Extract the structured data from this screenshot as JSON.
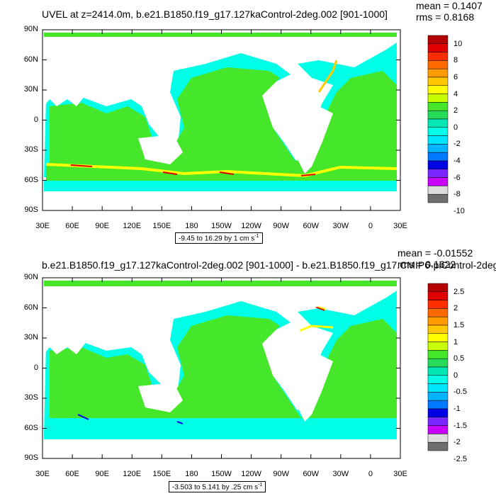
{
  "panel1": {
    "title": "UVEL at z=2414.0m, b.e21.B1850.f19_g17.127kaControl-2deg.002 [901-1000]",
    "mean_text": "mean = 0.1407",
    "rms_text": "rms = 0.8168",
    "range_text": "-9.45 to 16.29 by 1 cm s",
    "range_exp": "-1",
    "colorbar_labels": [
      "10",
      "8",
      "6",
      "4",
      "2",
      "0",
      "-2",
      "-4",
      "-6",
      "-8",
      "-10"
    ],
    "colorbar_colors": [
      "#b40000",
      "#e00000",
      "#ff2e00",
      "#ff6a00",
      "#ff9a00",
      "#ffc800",
      "#ffff00",
      "#c8ff00",
      "#46e62a",
      "#28dc5a",
      "#00e6b4",
      "#00ffe6",
      "#00e6ff",
      "#00b4ff",
      "#0078ff",
      "#0000e6",
      "#7a28ff",
      "#c800ff",
      "#dddddd",
      "#6e6e6e"
    ]
  },
  "panel2": {
    "title": "b.e21.B1850.f19_g17.127kaControl-2deg.002 [901-1000] - b.e21.B1850.f19_g17.CMIP6-piControl-2deg.",
    "mean_text": "mean = -0.01552",
    "rms_text": "rms = 0.1622",
    "range_text": "-3.503 to 5.141 by .25 cm s",
    "range_exp": "-1",
    "colorbar_labels": [
      "2.5",
      "2",
      "1.5",
      "1",
      "0.5",
      "0",
      "-0.5",
      "-1",
      "-1.5",
      "-2",
      "-2.5"
    ],
    "colorbar_colors": [
      "#b40000",
      "#e00000",
      "#ff2e00",
      "#ff6a00",
      "#ff9a00",
      "#ffc800",
      "#ffff00",
      "#c8ff00",
      "#46e62a",
      "#28dc5a",
      "#00e6b4",
      "#00ffe6",
      "#00e6ff",
      "#00b4ff",
      "#0078ff",
      "#0000e6",
      "#7a28ff",
      "#c800ff",
      "#dddddd",
      "#6e6e6e"
    ]
  },
  "lat_labels": [
    "90N",
    "60N",
    "30N",
    "0",
    "30S",
    "60S",
    "90S"
  ],
  "lon_labels": [
    "30E",
    "60E",
    "90E",
    "120E",
    "150E",
    "180",
    "150W",
    "120W",
    "90W",
    "60W",
    "30W",
    "0",
    "30E"
  ],
  "field_colors": {
    "green": "#46e62a",
    "cyan": "#00ffe6",
    "teal": "#00e6b4",
    "lightgreen": "#28dc5a"
  }
}
